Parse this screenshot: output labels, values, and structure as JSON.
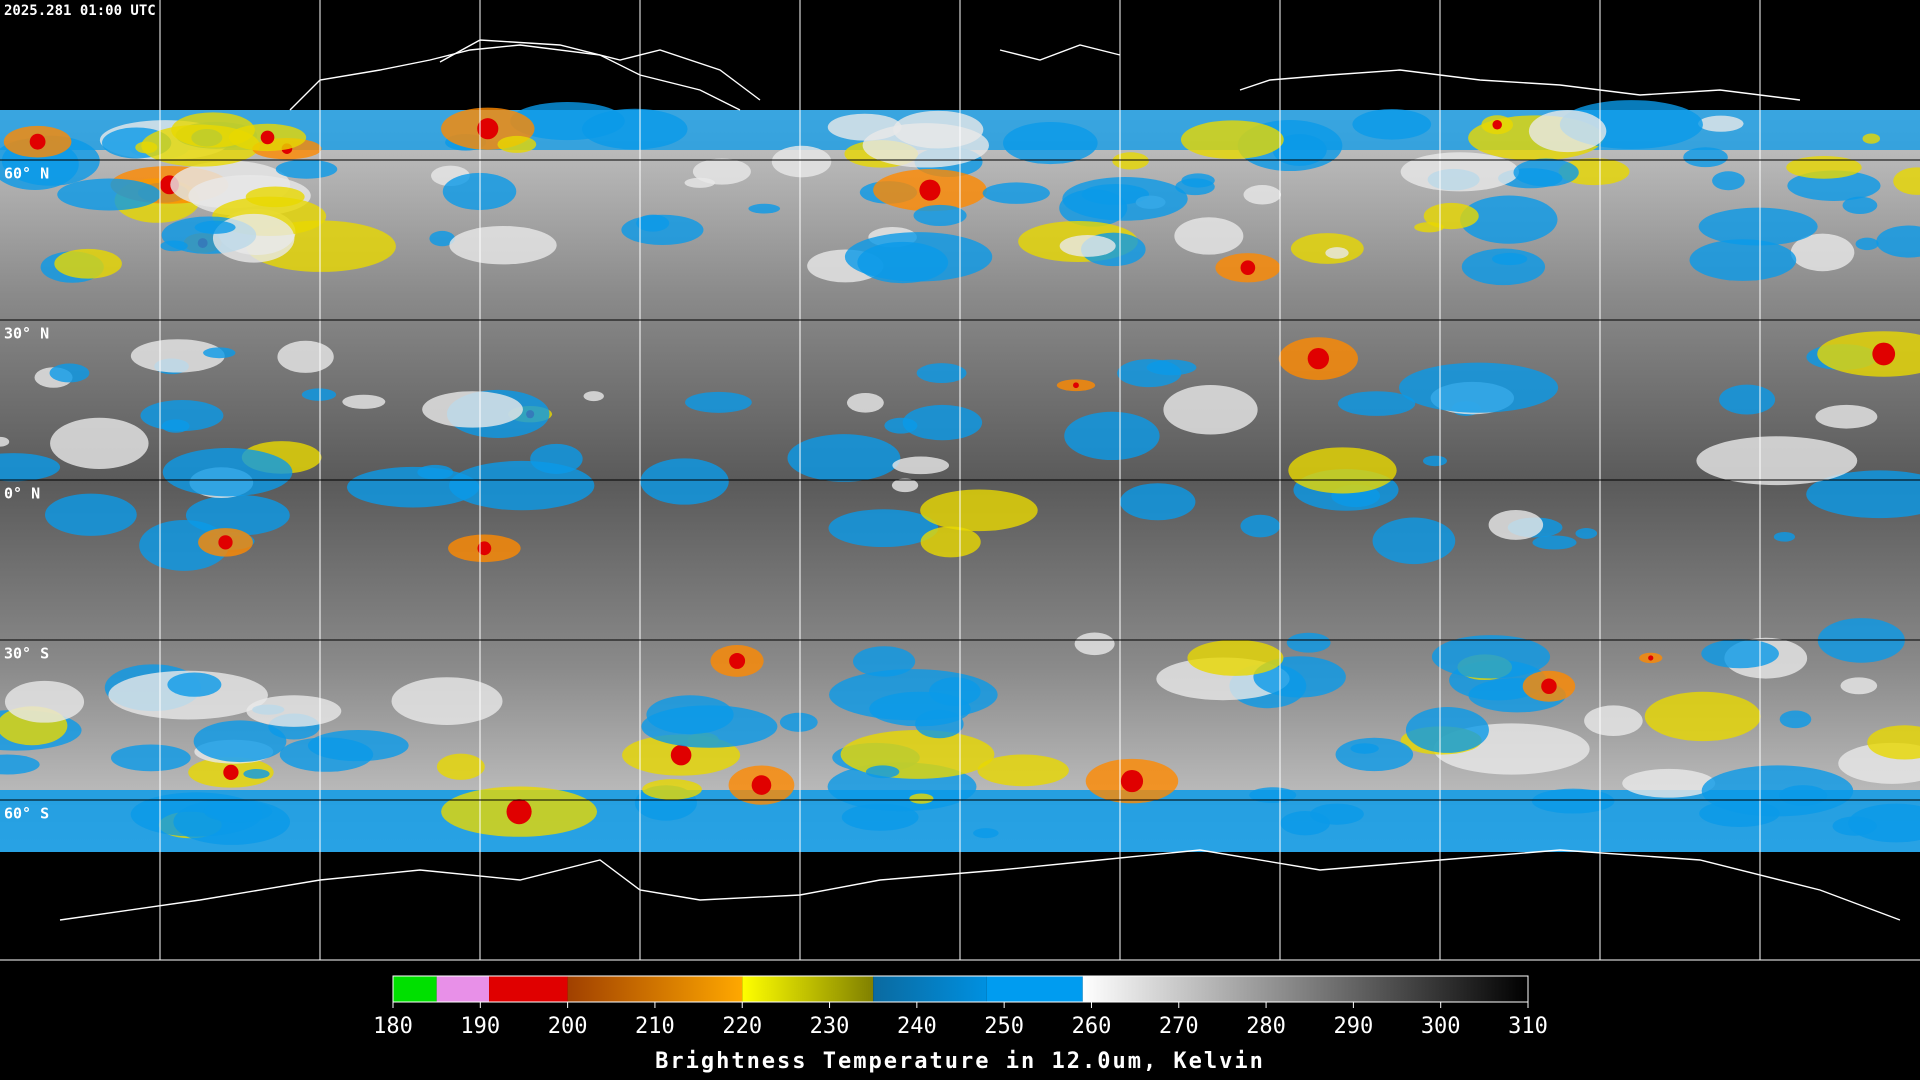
{
  "timestamp": "2025.281 01:00 UTC",
  "latitude_labels": [
    "60° N",
    "30° N",
    "0° N",
    "30° S",
    "60° S"
  ],
  "colorbar": {
    "title": "Brightness Temperature in 12.0um, Kelvin",
    "min": 180,
    "max": 310,
    "ticks": [
      180,
      190,
      200,
      210,
      220,
      230,
      240,
      250,
      260,
      270,
      280,
      290,
      300,
      310
    ],
    "segments": [
      {
        "from": 180,
        "to": 185,
        "color_start": "#00e000",
        "color_end": "#00e000"
      },
      {
        "from": 185,
        "to": 191,
        "color_start": "#e890e8",
        "color_end": "#e890e8"
      },
      {
        "from": 191,
        "to": 200,
        "color_start": "#e00000",
        "color_end": "#e00000"
      },
      {
        "from": 200,
        "to": 220,
        "color_start": "#a04000",
        "color_end": "#ffa800"
      },
      {
        "from": 220,
        "to": 235,
        "color_start": "#ffff00",
        "color_end": "#808000"
      },
      {
        "from": 235,
        "to": 248,
        "color_start": "#0a6aa0",
        "color_end": "#0090e0"
      },
      {
        "from": 248,
        "to": 259,
        "color_start": "#009cf0",
        "color_end": "#009cf0"
      },
      {
        "from": 259,
        "to": 310,
        "color_start": "#ffffff",
        "color_end": "#000000"
      }
    ]
  }
}
